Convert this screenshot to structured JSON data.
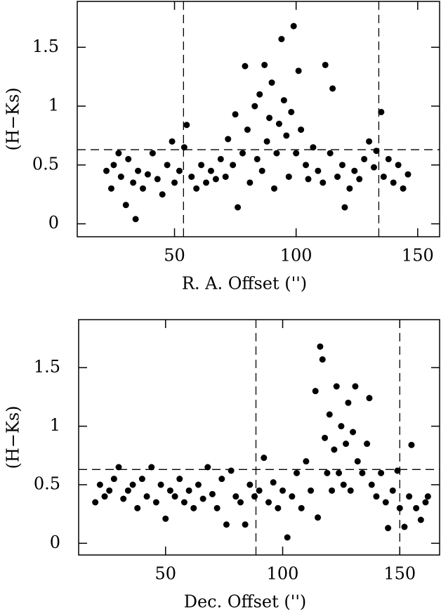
{
  "chart_data": [
    {
      "type": "scatter",
      "xlabel": "R. A. Offset ('')",
      "ylabel": "(H−Ks)",
      "color": "#000000",
      "xlim": [
        10,
        159
      ],
      "ylim": [
        -0.11,
        1.89
      ],
      "xticks": [
        50,
        100,
        150
      ],
      "yticks": [
        0,
        0.5,
        1,
        1.5
      ],
      "vlines": [
        53.7,
        134
      ],
      "hline": 0.63,
      "x": [
        22,
        24,
        25,
        27,
        28,
        30,
        31,
        33,
        34,
        35,
        37,
        39,
        41,
        43,
        45,
        47,
        49,
        50,
        52,
        54,
        55,
        57,
        59,
        61,
        63,
        65,
        67,
        69,
        71,
        72,
        74,
        75,
        76,
        78,
        79,
        80,
        81,
        83,
        84,
        85,
        86,
        87,
        88,
        89,
        90,
        91,
        92,
        93,
        94,
        95,
        96,
        97,
        98,
        99,
        100,
        101,
        102,
        104,
        105,
        107,
        109,
        111,
        112,
        114,
        115,
        117,
        119,
        120,
        122,
        124,
        126,
        128,
        130,
        132,
        133,
        135,
        136,
        138,
        140,
        142,
        144,
        146
      ],
      "values": [
        0.45,
        0.3,
        0.5,
        0.6,
        0.4,
        0.16,
        0.55,
        0.35,
        0.04,
        0.45,
        0.3,
        0.42,
        0.6,
        0.38,
        0.25,
        0.5,
        0.7,
        0.35,
        0.45,
        0.65,
        0.84,
        0.4,
        0.3,
        0.5,
        0.35,
        0.45,
        0.38,
        0.55,
        0.4,
        0.72,
        0.5,
        0.93,
        0.14,
        0.6,
        1.34,
        0.8,
        0.35,
        1.0,
        0.55,
        1.1,
        0.45,
        1.35,
        0.7,
        0.9,
        1.2,
        0.3,
        0.6,
        0.85,
        1.57,
        1.05,
        0.75,
        0.4,
        0.95,
        1.68,
        0.6,
        1.3,
        0.8,
        0.5,
        0.38,
        0.65,
        0.45,
        0.35,
        1.35,
        0.6,
        1.15,
        0.4,
        0.5,
        0.14,
        0.3,
        0.45,
        0.38,
        0.55,
        0.7,
        0.48,
        0.62,
        0.95,
        0.4,
        0.55,
        0.35,
        0.5,
        0.3,
        0.42
      ]
    },
    {
      "type": "scatter",
      "xlabel": "Dec. Offset ('')",
      "ylabel": "(H−Ks)",
      "color": "#000000",
      "xlim": [
        12.9,
        167
      ],
      "ylim": [
        -0.1,
        1.91
      ],
      "xticks": [
        50,
        100,
        150
      ],
      "yticks": [
        0,
        0.5,
        1,
        1.5
      ],
      "vlines": [
        88.6,
        150
      ],
      "hline": 0.63,
      "x": [
        20,
        22,
        24,
        26,
        28,
        30,
        32,
        34,
        36,
        38,
        40,
        42,
        44,
        46,
        48,
        50,
        52,
        54,
        56,
        58,
        60,
        62,
        64,
        66,
        68,
        70,
        72,
        74,
        76,
        78,
        80,
        82,
        84,
        86,
        88,
        90,
        92,
        94,
        96,
        98,
        100,
        102,
        104,
        106,
        108,
        110,
        112,
        114,
        115,
        116,
        117,
        118,
        119,
        120,
        121,
        122,
        123,
        124,
        125,
        126,
        127,
        128,
        129,
        130,
        131,
        132,
        134,
        136,
        137,
        138,
        140,
        142,
        144,
        145,
        147,
        149,
        150,
        152,
        154,
        155,
        157,
        159,
        161,
        162
      ],
      "values": [
        0.35,
        0.5,
        0.4,
        0.45,
        0.55,
        0.65,
        0.38,
        0.45,
        0.5,
        0.3,
        0.55,
        0.4,
        0.65,
        0.35,
        0.5,
        0.21,
        0.45,
        0.4,
        0.55,
        0.35,
        0.45,
        0.3,
        0.5,
        0.38,
        0.65,
        0.42,
        0.3,
        0.55,
        0.16,
        0.62,
        0.4,
        0.35,
        0.16,
        0.5,
        0.4,
        0.45,
        0.73,
        0.35,
        0.52,
        0.3,
        0.45,
        0.05,
        0.4,
        0.6,
        0.3,
        0.7,
        0.45,
        1.3,
        0.22,
        1.68,
        1.57,
        0.9,
        0.6,
        1.1,
        0.45,
        0.8,
        1.34,
        0.6,
        1.0,
        0.5,
        0.85,
        1.2,
        0.45,
        0.95,
        1.34,
        0.7,
        0.6,
        0.85,
        1.24,
        0.5,
        0.4,
        0.6,
        0.35,
        0.13,
        0.45,
        0.62,
        0.3,
        0.14,
        0.4,
        0.84,
        0.3,
        0.2,
        0.35,
        0.4
      ]
    }
  ]
}
